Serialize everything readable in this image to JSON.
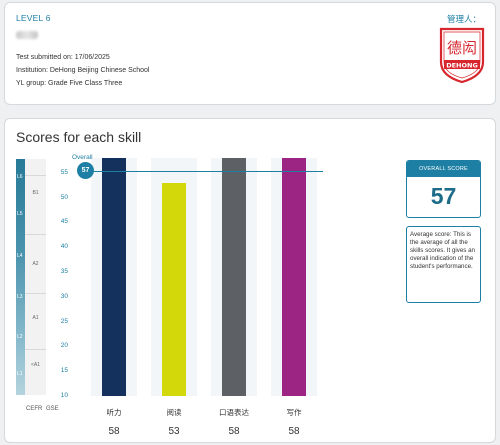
{
  "header": {
    "level": "LEVEL 6",
    "admin_label": "管理人：",
    "submitted": "Test submitted on: 17/06/2025",
    "institution": "Institution: DeHong Beijing Chinese School",
    "group": "YL group: Grade Five Class Three"
  },
  "logo": {
    "chars": "德闳",
    "text": "DEHONG",
    "color": "#d7262c"
  },
  "scores": {
    "title": "Scores for each skill",
    "overall_tag": "Overall",
    "overall_value": "57",
    "overall_box_title": "OVERALL SCORE",
    "description": "Average score: This is the average of all the skills scores. It gives an overall indication of the student's performance.",
    "cefr_label": "CEFR",
    "gse_label": "GSE",
    "cefr_levels": [
      "L6",
      "L5",
      "L4",
      "L3",
      "L2",
      "L1"
    ],
    "gse_bands": [
      "B1",
      "A2",
      "A1",
      "<A1"
    ],
    "axis_ticks": [
      "55",
      "50",
      "45",
      "40",
      "35",
      "30",
      "25",
      "20",
      "15",
      "10"
    ]
  },
  "chart_data": {
    "type": "bar",
    "categories": [
      "听力",
      "阅读",
      "口语表达",
      "写作"
    ],
    "values": [
      58,
      53,
      58,
      58
    ],
    "value_labels": [
      "58",
      "53",
      "58",
      "58"
    ],
    "colors": [
      "#13315c",
      "#d2d80a",
      "#5d6166",
      "#9c2583"
    ],
    "overall": 57,
    "ylim": [
      10,
      58
    ]
  }
}
